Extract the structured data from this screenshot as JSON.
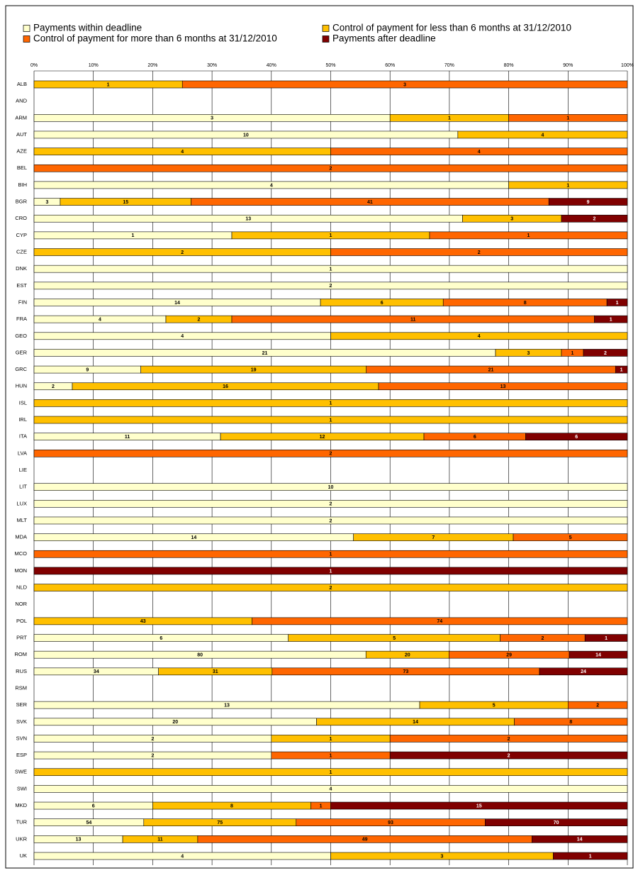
{
  "chart_data": {
    "type": "bar",
    "orientation": "horizontal",
    "stacked": "percent",
    "categories": [
      "ALB",
      "AND",
      "ARM",
      "AUT",
      "AZE",
      "BEL",
      "BIH",
      "BGR",
      "CRO",
      "CYP",
      "CZE",
      "DNK",
      "EST",
      "FIN",
      "FRA",
      "GEO",
      "GER",
      "GRC",
      "HUN",
      "ISL",
      "IRL",
      "ITA",
      "LVA",
      "LIE",
      "LIT",
      "LUX",
      "MLT",
      "MDA",
      "MCO",
      "MON",
      "NLD",
      "NOR",
      "POL",
      "PRT",
      "ROM",
      "RUS",
      "RSM",
      "SER",
      "SVK",
      "SVN",
      "ESP",
      "SWE",
      "SWI",
      "MKD",
      "TUR",
      "UKR",
      "UK"
    ],
    "series": [
      {
        "name": "Payments within deadline",
        "color": "#ffffcc",
        "values": [
          null,
          null,
          3,
          10,
          null,
          null,
          4,
          3,
          13,
          1,
          null,
          1,
          2,
          14,
          4,
          4,
          21,
          9,
          2,
          null,
          null,
          11,
          null,
          null,
          10,
          2,
          2,
          14,
          null,
          null,
          null,
          null,
          null,
          6,
          80,
          34,
          null,
          13,
          20,
          2,
          2,
          null,
          4,
          6,
          54,
          13,
          4
        ]
      },
      {
        "name": "Control of payment for less than 6 months at 31/12/2010",
        "color": "#ffc000",
        "values": [
          1,
          null,
          1,
          4,
          4,
          null,
          1,
          15,
          3,
          1,
          2,
          null,
          null,
          6,
          2,
          4,
          3,
          19,
          16,
          1,
          1,
          12,
          null,
          null,
          null,
          null,
          null,
          7,
          null,
          null,
          2,
          null,
          43,
          5,
          20,
          31,
          null,
          5,
          14,
          1,
          null,
          1,
          null,
          8,
          75,
          11,
          3
        ]
      },
      {
        "name": "Control of payment for more than 6 months at 31/12/2010",
        "color": "#ff6600",
        "values": [
          3,
          null,
          1,
          null,
          4,
          2,
          null,
          41,
          null,
          1,
          2,
          null,
          null,
          8,
          11,
          null,
          1,
          21,
          13,
          null,
          null,
          6,
          2,
          null,
          null,
          null,
          null,
          5,
          1,
          null,
          null,
          null,
          74,
          2,
          29,
          73,
          null,
          2,
          8,
          2,
          1,
          null,
          null,
          1,
          93,
          49,
          null
        ]
      },
      {
        "name": "Payments after deadline",
        "color": "#800000",
        "values": [
          null,
          null,
          null,
          null,
          null,
          null,
          null,
          9,
          2,
          null,
          null,
          null,
          null,
          1,
          1,
          null,
          2,
          1,
          null,
          null,
          null,
          6,
          null,
          null,
          null,
          null,
          null,
          null,
          null,
          1,
          null,
          null,
          null,
          1,
          14,
          24,
          null,
          null,
          null,
          null,
          2,
          null,
          null,
          15,
          70,
          14,
          1
        ]
      }
    ],
    "xlim": [
      0,
      100
    ],
    "xticks": [
      {
        "value": 0,
        "label": "0%"
      },
      {
        "value": 10,
        "label": "10%"
      },
      {
        "value": 20,
        "label": "20%"
      },
      {
        "value": 30,
        "label": "30%"
      },
      {
        "value": 40,
        "label": "40%"
      },
      {
        "value": 50,
        "label": "50%"
      },
      {
        "value": 60,
        "label": "60%"
      },
      {
        "value": 70,
        "label": "70%"
      },
      {
        "value": 80,
        "label": "80%"
      },
      {
        "value": 90,
        "label": "90%"
      },
      {
        "value": 100,
        "label": "100%"
      }
    ],
    "grid": true,
    "legend": "top"
  }
}
